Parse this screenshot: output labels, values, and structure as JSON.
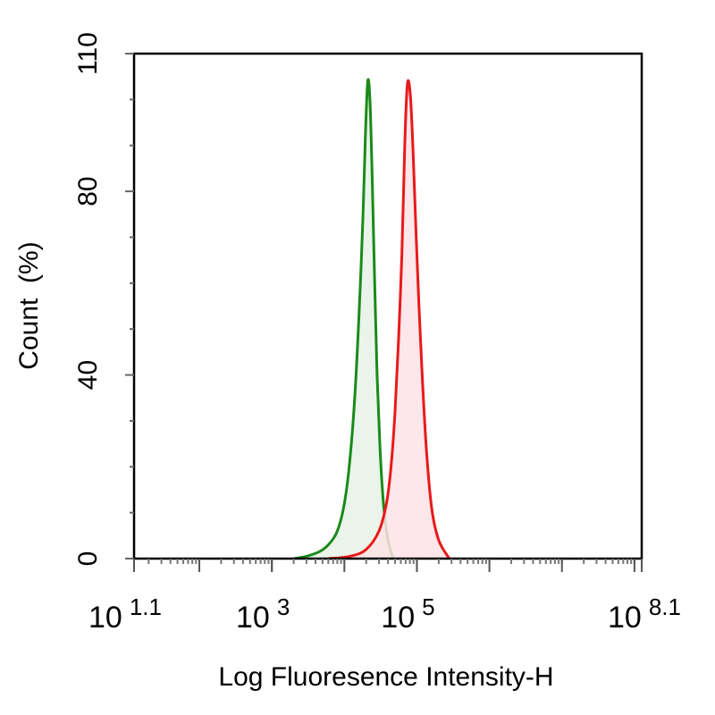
{
  "chart_data": {
    "type": "area",
    "xlabel": "Log Fluoresence Intensity-H",
    "ylabel": "Count  (%)",
    "x_scale": "log",
    "xlim": [
      12.59,
      125900000
    ],
    "ylim": [
      0,
      110
    ],
    "y_ticks": [
      0,
      40,
      80,
      110
    ],
    "x_tick_labels": [
      {
        "base": "10",
        "exp": "1.1",
        "value": 12.59
      },
      {
        "base": "10",
        "exp": "3",
        "value": 1000
      },
      {
        "base": "10",
        "exp": "5",
        "value": 100000
      },
      {
        "base": "10",
        "exp": "8.1",
        "value": 125900000
      }
    ],
    "grid": false,
    "legend": "none",
    "series": [
      {
        "color": "#1a8a1a",
        "fill": "#e6f2e6",
        "x": [
          2000,
          3000,
          4500,
          6000,
          8000,
          10000,
          12000,
          14000,
          16000,
          18000,
          19500,
          21000,
          22500,
          24000,
          26000,
          28000,
          31000,
          35000,
          40000,
          47000
        ],
        "y": [
          0,
          0.5,
          1.5,
          3,
          6,
          12,
          22,
          36,
          54,
          74,
          92,
          104,
          100,
          85,
          62,
          42,
          24,
          11,
          4,
          0
        ]
      },
      {
        "color": "#e8191a",
        "fill": "#fde3e6",
        "x": [
          6000,
          12000,
          20000,
          30000,
          38000,
          44000,
          50000,
          56000,
          62000,
          66000,
          70000,
          75000,
          82000,
          90000,
          100000,
          115000,
          135000,
          160000,
          200000,
          280000
        ],
        "y": [
          0,
          0.5,
          2,
          6,
          12,
          20,
          32,
          48,
          66,
          82,
          96,
          104,
          100,
          86,
          66,
          44,
          24,
          11,
          4,
          0
        ]
      }
    ]
  }
}
